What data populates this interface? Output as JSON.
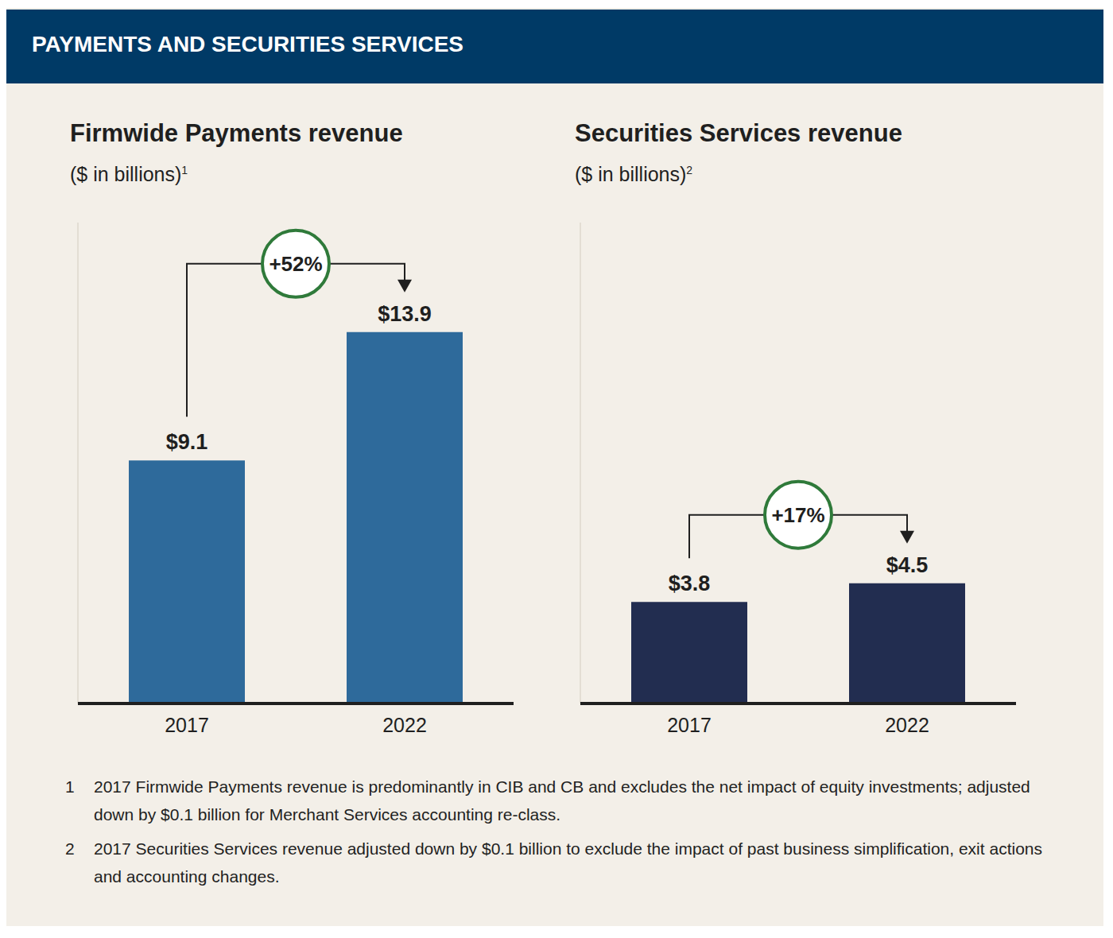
{
  "header": "PAYMENTS AND SECURITIES SERVICES",
  "chart_data": [
    {
      "type": "bar",
      "title": "Firmwide Payments revenue",
      "subtitle": "($ in billions)",
      "footnote_ref": "1",
      "categories": [
        "2017",
        "2022"
      ],
      "values": [
        9.1,
        13.9
      ],
      "value_labels": [
        "$9.1",
        "$13.9"
      ],
      "data_labels": true,
      "color": "#2e6a9b",
      "ylim": [
        0,
        18
      ],
      "tick_labels": "x",
      "annotation": "+52%"
    },
    {
      "type": "bar",
      "title": "Securities Services revenue",
      "subtitle": "($ in billions)",
      "footnote_ref": "2",
      "categories": [
        "2017",
        "2022"
      ],
      "values": [
        3.8,
        4.5
      ],
      "value_labels": [
        "$3.8",
        "$4.5"
      ],
      "data_labels": true,
      "color": "#222d50",
      "ylim": [
        0,
        18
      ],
      "tick_labels": "x",
      "annotation": "+17%"
    }
  ],
  "footnotes": [
    {
      "mark": "1",
      "text": "2017 Firmwide Payments revenue is predominantly in CIB and CB and excludes the net impact of equity investments; adjusted down by $0.1 billion for Merchant Services accounting re-class."
    },
    {
      "mark": "2",
      "text": "2017 Securities Services revenue adjusted down by $0.1 billion to exclude the impact of past business simplification, exit actions and accounting changes."
    }
  ]
}
